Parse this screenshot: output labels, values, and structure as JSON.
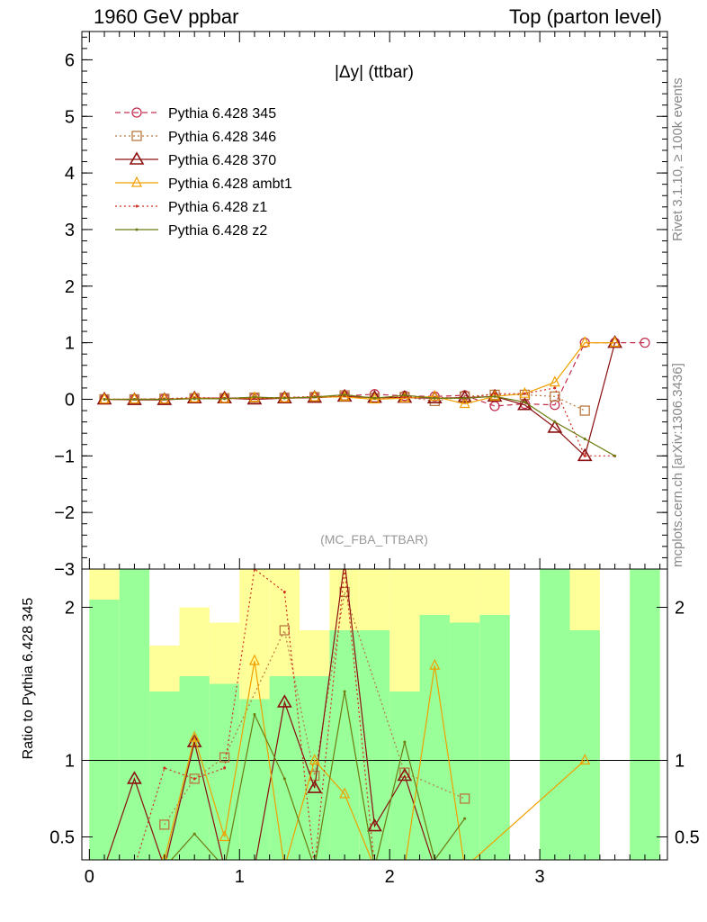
{
  "header": {
    "left": "1960 GeV ppbar",
    "right": "Top (parton level)"
  },
  "side_labels": {
    "rivet": "Rivet 3.1.10, ≥ 100k events",
    "mcplots": "mcplots.cern.ch [arXiv:1306.3436]"
  },
  "chart_data": [
    {
      "type": "line",
      "title": "|Δy| (ttbar)",
      "annotation": "(MC_FBA_TTBAR)",
      "xlim": [
        -0.05,
        3.85
      ],
      "ylim": [
        -3,
        6.5
      ],
      "yticks": [
        -3,
        -2,
        -1,
        0,
        1,
        2,
        3,
        4,
        5,
        6
      ],
      "ytick_labels": [
        "−3",
        "−2",
        "−1",
        "0",
        "1",
        "2",
        "3",
        "4",
        "5",
        "6"
      ],
      "legend_position": "top-left",
      "grid": false,
      "series": [
        {
          "name": "Pythia 6.428 345",
          "color": "#c23050",
          "dash": "6,4",
          "marker": "circle",
          "x": [
            0.1,
            0.3,
            0.5,
            0.7,
            0.9,
            1.1,
            1.3,
            1.5,
            1.7,
            1.9,
            2.1,
            2.3,
            2.5,
            2.7,
            2.9,
            3.1,
            3.3,
            3.5,
            3.7
          ],
          "y": [
            0.0,
            0.0,
            0.01,
            0.02,
            0.02,
            0.03,
            0.03,
            0.04,
            0.06,
            0.09,
            0.06,
            0.05,
            0.07,
            -0.12,
            -0.08,
            -0.1,
            1.0,
            1.0,
            1.0
          ]
        },
        {
          "name": "Pythia 6.428 346",
          "color": "#b87840",
          "dash": "2,3",
          "marker": "square",
          "x": [
            0.1,
            0.3,
            0.5,
            0.7,
            0.9,
            1.1,
            1.3,
            1.5,
            1.7,
            1.9,
            2.1,
            2.3,
            2.5,
            2.7,
            2.9,
            3.1,
            3.3
          ],
          "y": [
            0.0,
            0.0,
            0.01,
            0.02,
            0.02,
            0.03,
            0.03,
            0.04,
            0.07,
            0.02,
            0.04,
            -0.03,
            0.05,
            0.08,
            0.08,
            0.05,
            -0.2
          ]
        },
        {
          "name": "Pythia 6.428 370",
          "color": "#8b1010",
          "dash": "",
          "marker": "triangle",
          "x": [
            0.1,
            0.3,
            0.5,
            0.7,
            0.9,
            1.1,
            1.3,
            1.5,
            1.7,
            1.9,
            2.1,
            2.3,
            2.5,
            2.7,
            2.9,
            3.1,
            3.3,
            3.5
          ],
          "y": [
            0.0,
            -0.01,
            -0.01,
            0.02,
            0.02,
            0.0,
            0.02,
            0.03,
            0.05,
            0.03,
            0.03,
            0.02,
            0.03,
            0.05,
            -0.1,
            -0.5,
            -1.0,
            1.0
          ]
        },
        {
          "name": "Pythia 6.428 ambt1",
          "color": "#f0a000",
          "dash": "",
          "marker": "triangle-small",
          "x": [
            0.1,
            0.3,
            0.5,
            0.7,
            0.9,
            1.1,
            1.3,
            1.5,
            1.7,
            1.9,
            2.1,
            2.3,
            2.5,
            2.7,
            2.9,
            3.1,
            3.3,
            3.5
          ],
          "y": [
            0.0,
            0.0,
            0.0,
            0.02,
            0.01,
            0.03,
            0.02,
            0.04,
            0.04,
            0.0,
            0.02,
            0.05,
            -0.08,
            0.05,
            0.1,
            0.3,
            1.0,
            1.0
          ]
        },
        {
          "name": "Pythia 6.428 z1",
          "color": "#d03020",
          "dash": "2,3",
          "marker": "dot",
          "x": [
            0.1,
            0.3,
            0.5,
            0.7,
            0.9,
            1.1,
            1.3,
            1.5,
            1.7,
            1.9,
            2.1,
            2.3,
            2.5,
            2.7,
            2.9,
            3.1,
            3.3,
            3.5
          ],
          "y": [
            0.0,
            0.0,
            0.01,
            0.03,
            0.02,
            0.02,
            0.03,
            0.05,
            0.06,
            0.02,
            0.04,
            0.03,
            0.02,
            0.1,
            0.1,
            0.2,
            -1.0,
            -1.0
          ]
        },
        {
          "name": "Pythia 6.428 z2",
          "color": "#6e7a10",
          "dash": "",
          "marker": "dot",
          "x": [
            0.1,
            0.3,
            0.5,
            0.7,
            0.9,
            1.1,
            1.3,
            1.5,
            1.7,
            1.9,
            2.1,
            2.3,
            2.5,
            2.7,
            2.9,
            3.1,
            3.3,
            3.5
          ],
          "y": [
            0.0,
            0.0,
            0.0,
            0.01,
            0.01,
            0.04,
            0.02,
            0.04,
            0.08,
            0.02,
            0.07,
            0.02,
            0.02,
            0.05,
            -0.05,
            -0.4,
            -0.7,
            -1.0
          ]
        }
      ]
    },
    {
      "type": "line",
      "ylabel": "Ratio to Pythia 6.428 345",
      "xlim": [
        -0.05,
        3.85
      ],
      "ylim": [
        0.35,
        2.25
      ],
      "xticks": [
        0,
        1,
        2,
        3
      ],
      "xtick_labels": [
        "0",
        "1",
        "2",
        "3"
      ],
      "yticks": [
        0.5,
        1,
        2
      ],
      "ytick_labels": [
        "0.5",
        "1",
        "2"
      ],
      "reference_line": 1,
      "band_x_edges": [
        0.0,
        0.2,
        0.4,
        0.6,
        0.8,
        1.0,
        1.2,
        1.4,
        1.6,
        1.8,
        2.0,
        2.2,
        2.4,
        2.6,
        2.8,
        3.0,
        3.2,
        3.4,
        3.6,
        3.8
      ],
      "green_band_top": [
        2.05,
        2.25,
        1.45,
        1.55,
        1.5,
        1.4,
        1.55,
        1.55,
        1.85,
        1.85,
        1.45,
        1.95,
        1.9,
        1.95,
        null,
        2.25,
        1.85,
        null,
        2.25
      ],
      "yellow_band_top": [
        2.25,
        2.25,
        1.75,
        2.0,
        1.9,
        2.25,
        2.25,
        1.85,
        2.25,
        2.25,
        2.25,
        2.25,
        2.25,
        2.25,
        null,
        2.25,
        2.25,
        null,
        2.25
      ],
      "series": [
        {
          "name": "Pythia 6.428 346",
          "color": "#b87840",
          "dash": "2,3",
          "marker": "square",
          "x": [
            0.5,
            0.7,
            0.9,
            1.3,
            1.5,
            1.7,
            2.1,
            2.5
          ],
          "y": [
            0.58,
            0.88,
            1.02,
            1.85,
            0.9,
            2.1,
            0.92,
            0.75
          ]
        },
        {
          "name": "Pythia 6.428 370",
          "color": "#8b1010",
          "dash": "",
          "marker": "triangle",
          "x": [
            0.1,
            0.3,
            0.5,
            0.7,
            0.9,
            1.1,
            1.3,
            1.5,
            1.7,
            1.9,
            2.1,
            2.3
          ],
          "y": [
            0.3,
            0.88,
            0.3,
            1.12,
            0.3,
            0.3,
            1.38,
            0.82,
            2.3,
            0.57,
            0.9,
            0.3
          ]
        },
        {
          "name": "Pythia 6.428 ambt1",
          "color": "#f0a000",
          "dash": "",
          "marker": "triangle-small",
          "x": [
            0.3,
            0.5,
            0.7,
            0.9,
            1.1,
            1.3,
            1.5,
            1.7,
            1.9,
            2.1,
            2.3,
            2.5,
            3.3
          ],
          "y": [
            0.3,
            0.35,
            1.15,
            0.5,
            1.65,
            0.3,
            1.0,
            0.78,
            0.3,
            0.3,
            1.62,
            0.3,
            1.0
          ]
        },
        {
          "name": "Pythia 6.428 z1",
          "color": "#d03020",
          "dash": "2,3",
          "marker": "dot",
          "x": [
            0.1,
            0.3,
            0.5,
            0.7,
            0.9,
            1.1,
            1.3,
            1.5,
            1.7,
            1.9,
            2.1,
            2.3,
            2.5
          ],
          "y": [
            0.3,
            0.3,
            0.95,
            0.88,
            0.95,
            2.25,
            2.1,
            0.3,
            2.25,
            0.3,
            0.3,
            0.3,
            0.3
          ]
        },
        {
          "name": "Pythia 6.428 z2",
          "color": "#6e7a10",
          "dash": "",
          "marker": "dot",
          "x": [
            0.1,
            0.3,
            0.5,
            0.7,
            0.9,
            1.1,
            1.3,
            1.5,
            1.7,
            1.9,
            2.1,
            2.3,
            2.5
          ],
          "y": [
            0.3,
            0.3,
            0.3,
            0.52,
            0.3,
            1.3,
            0.88,
            0.3,
            1.45,
            0.3,
            1.12,
            0.35,
            0.62
          ]
        }
      ]
    }
  ]
}
